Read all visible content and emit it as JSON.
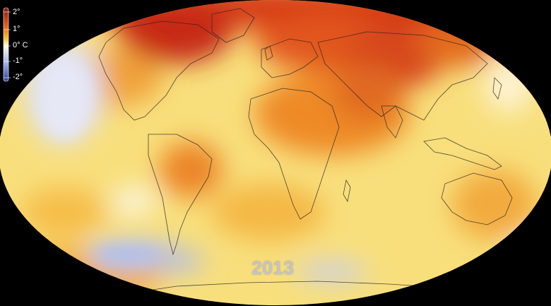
{
  "legend": {
    "labels": [
      "2°",
      "1°",
      "0° C",
      "-1°",
      "-2°"
    ],
    "colors": {
      "max": "#8a1212",
      "warm": "#e8611a",
      "mild": "#f7c431",
      "neutral": "#fffbe8",
      "cool": "#9fb3e8",
      "min": "#2c3f9e"
    }
  },
  "year": "2013",
  "colors": {
    "background": "#000000",
    "ocean_base": "#f8e07a",
    "coastline": "#222222"
  }
}
